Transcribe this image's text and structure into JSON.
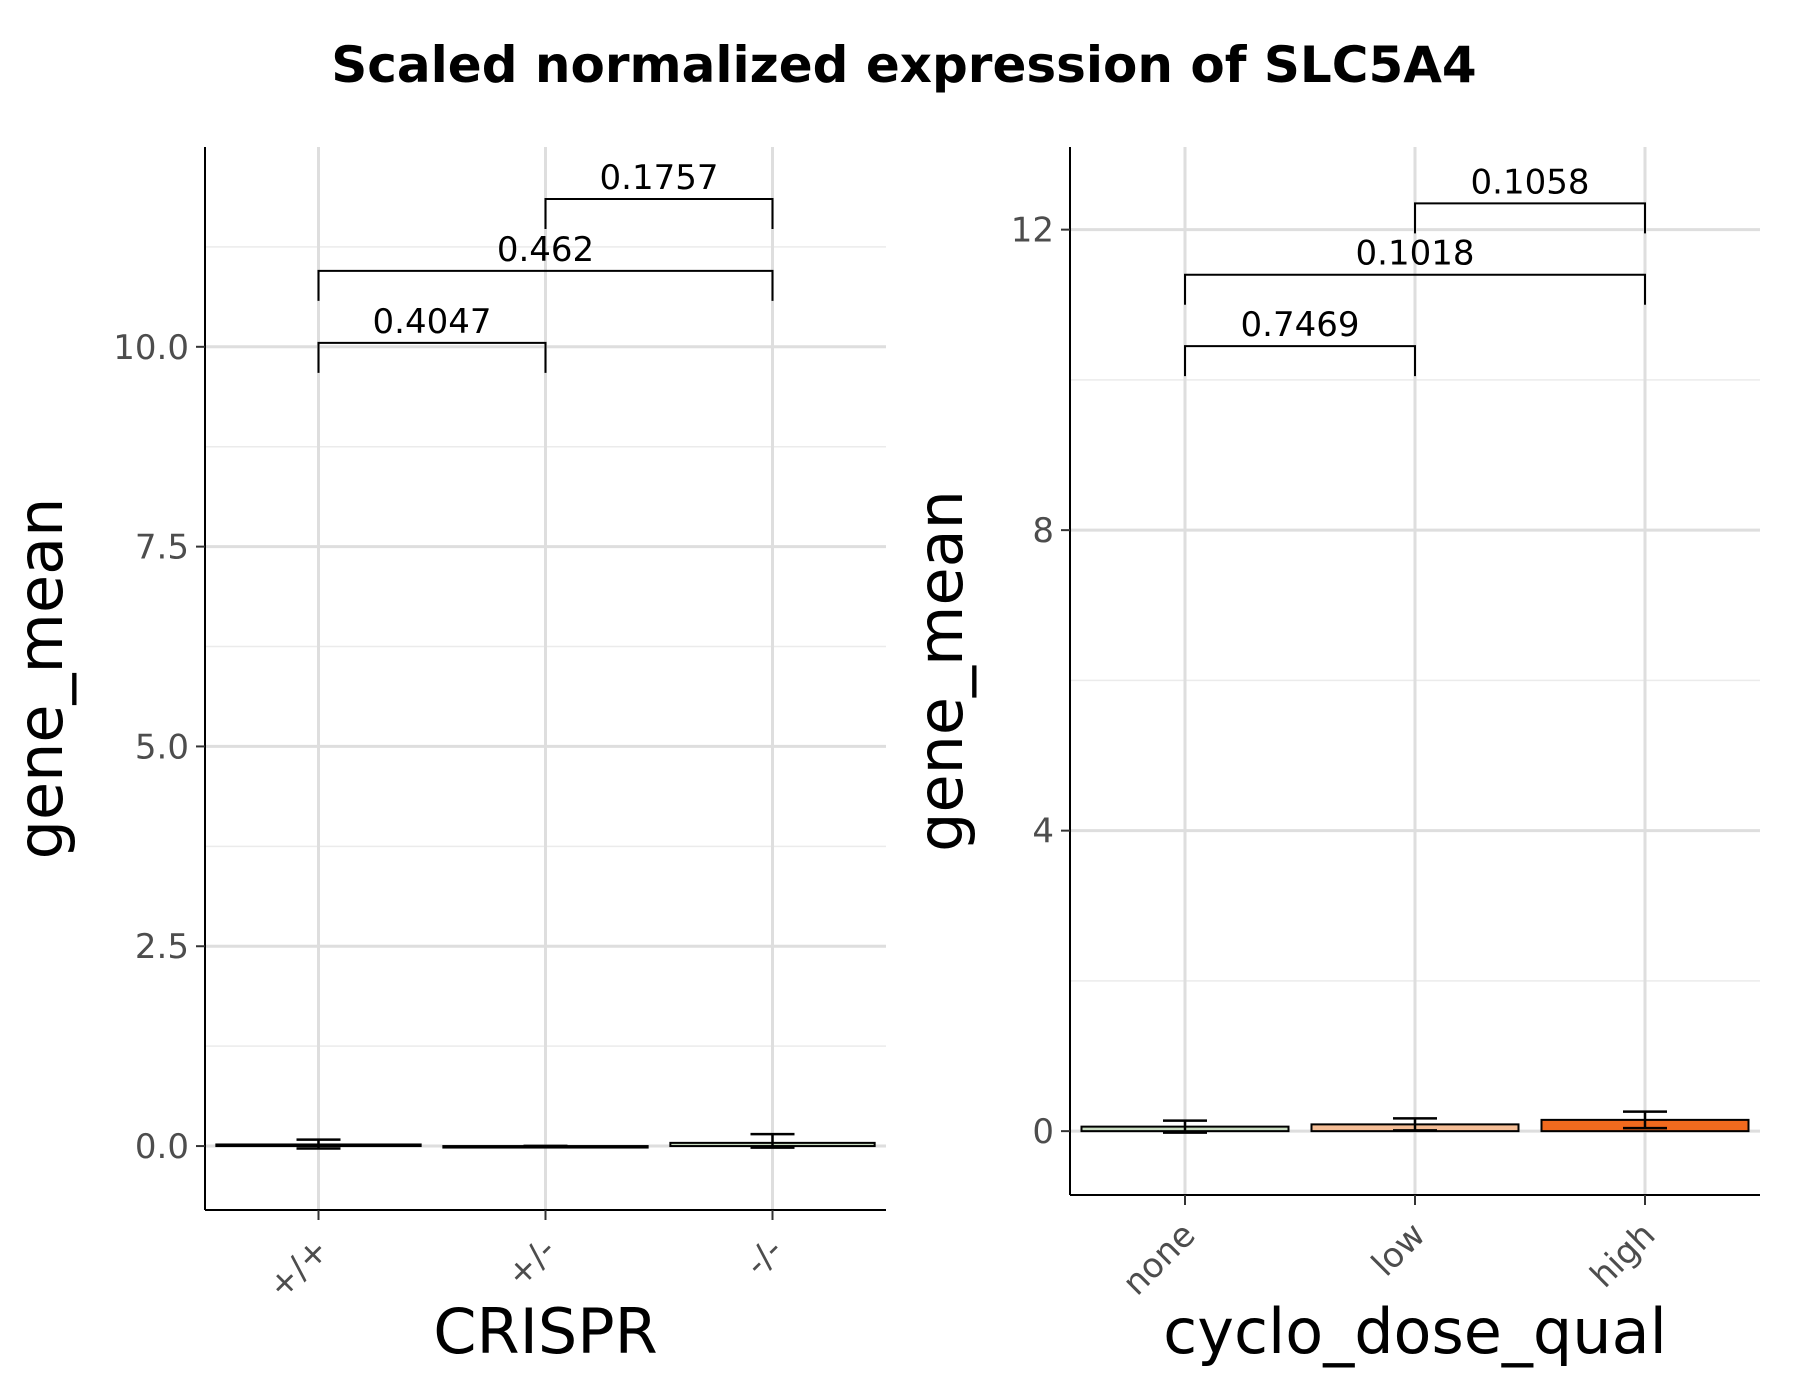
{
  "title": "Scaled normalized expression of SLC5A4",
  "chart_data": [
    {
      "type": "bar",
      "categories": [
        "+/+",
        "+/-",
        "-/-"
      ],
      "values": [
        0.02,
        0.0,
        0.04
      ],
      "error_upper": [
        0.08,
        0.0,
        0.15
      ],
      "error_lower": [
        -0.03,
        0.0,
        -0.02
      ],
      "colors": [
        "#2d2d2d",
        "#2d2d2d",
        "#c8dcc0"
      ],
      "xlabel": "CRISPR",
      "ylabel": "gene_mean",
      "ylim": [
        -0.8,
        12.5
      ],
      "yticks": [
        0.0,
        2.5,
        5.0,
        7.5,
        10.0
      ],
      "ytick_labels": [
        "0.0",
        "2.5",
        "5.0",
        "7.5",
        "10.0"
      ],
      "grid": true,
      "comparisons": [
        {
          "from": 0,
          "to": 1,
          "label": "0.4047",
          "y": 10.05
        },
        {
          "from": 0,
          "to": 2,
          "label": "0.462",
          "y": 10.95
        },
        {
          "from": 1,
          "to": 2,
          "label": "0.1757",
          "y": 11.85
        }
      ]
    },
    {
      "type": "bar",
      "categories": [
        "none",
        "low",
        "high"
      ],
      "values": [
        0.06,
        0.09,
        0.15
      ],
      "error_upper": [
        0.14,
        0.17,
        0.26
      ],
      "error_lower": [
        -0.02,
        0.01,
        0.04
      ],
      "colors": [
        "#c8dcc0",
        "#f4bd96",
        "#f06a1e"
      ],
      "xlabel": "cyclo_dose_qual",
      "ylabel": "gene_mean",
      "ylim": [
        -0.85,
        13.1
      ],
      "yticks": [
        0,
        4,
        8,
        12
      ],
      "ytick_labels": [
        "0",
        "4",
        "8",
        "12"
      ],
      "grid": true,
      "comparisons": [
        {
          "from": 0,
          "to": 1,
          "label": "0.7469",
          "y": 10.45
        },
        {
          "from": 0,
          "to": 2,
          "label": "0.1018",
          "y": 11.4
        },
        {
          "from": 1,
          "to": 2,
          "label": "0.1058",
          "y": 12.35
        }
      ]
    }
  ]
}
